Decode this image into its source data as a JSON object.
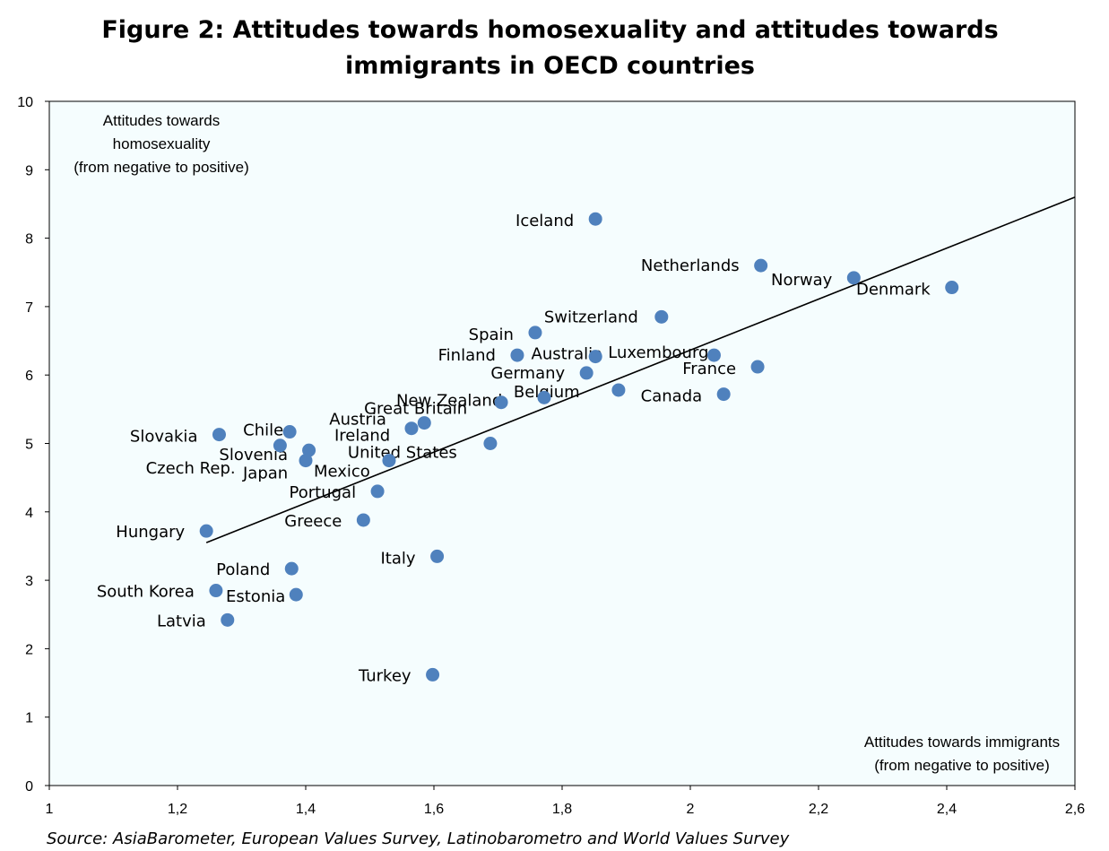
{
  "title_lines": [
    "Figure 2: Attitudes towards homosexuality and attitudes towards",
    "immigrants in OECD countries"
  ],
  "source": "Source: AsiaBarometer, European Values Survey, Latinobarometro  and World Values Survey",
  "colors": {
    "point": "#4f81bd",
    "plot_bg": "#f5fdfe",
    "trend": "#000000"
  },
  "chart_data": {
    "type": "scatter",
    "title": "Figure 2: Attitudes towards homosexuality and attitudes towards immigrants in OECD countries",
    "xlabel_lines": [
      "Attitudes towards immigrants",
      "(from negative to positive)"
    ],
    "ylabel_lines": [
      "Attitudes towards",
      "homosexuality",
      "(from negative to positive)"
    ],
    "xlim": [
      1,
      2.6
    ],
    "ylim": [
      0,
      10
    ],
    "x_ticks": [
      "1",
      "1,2",
      "1,4",
      "1,6",
      "1,8",
      "2",
      "2,2",
      "2,4",
      "2,6"
    ],
    "y_ticks": [
      "0",
      "1",
      "2",
      "3",
      "4",
      "5",
      "6",
      "7",
      "8",
      "9",
      "10"
    ],
    "grid": false,
    "trendline": {
      "x": [
        1.245,
        2.6
      ],
      "y": [
        3.55,
        8.6
      ]
    },
    "points": [
      {
        "label": "Iceland",
        "x": 1.852,
        "y": 8.28
      },
      {
        "label": "Netherlands",
        "x": 2.11,
        "y": 7.6
      },
      {
        "label": "Norway",
        "x": 2.255,
        "y": 7.42
      },
      {
        "label": "Denmark",
        "x": 2.408,
        "y": 7.28
      },
      {
        "label": "Switzerland",
        "x": 1.955,
        "y": 6.85
      },
      {
        "label": "Spain",
        "x": 1.758,
        "y": 6.62
      },
      {
        "label": "Finland",
        "x": 1.73,
        "y": 6.29
      },
      {
        "label": "Australia",
        "x": 1.852,
        "y": 6.27
      },
      {
        "label": "Luxembourg",
        "x": 2.037,
        "y": 6.29
      },
      {
        "label": "France",
        "x": 2.105,
        "y": 6.12
      },
      {
        "label": "Germany",
        "x": 1.838,
        "y": 6.03
      },
      {
        "label": "Belgium",
        "x": 1.888,
        "y": 5.78
      },
      {
        "label": "Canada",
        "x": 2.052,
        "y": 5.72
      },
      {
        "label": "New Zealand",
        "x": 1.772,
        "y": 5.67
      },
      {
        "label": "Great Britain",
        "x": 1.705,
        "y": 5.6
      },
      {
        "label": "Austria",
        "x": 1.585,
        "y": 5.3
      },
      {
        "label": "Ireland",
        "x": 1.565,
        "y": 5.22
      },
      {
        "label": "United States",
        "x": 1.688,
        "y": 5.0
      },
      {
        "label": "Slovakia",
        "x": 1.265,
        "y": 5.13
      },
      {
        "label": "Chile",
        "x": 1.375,
        "y": 5.17
      },
      {
        "label": "Slovenia",
        "x": 1.36,
        "y": 4.97
      },
      {
        "label": "Czech Rep.",
        "x": 1.405,
        "y": 4.9
      },
      {
        "label": "Japan",
        "x": 1.4,
        "y": 4.75
      },
      {
        "label": "Mexico",
        "x": 1.53,
        "y": 4.75
      },
      {
        "label": "Portugal",
        "x": 1.512,
        "y": 4.3
      },
      {
        "label": "Greece",
        "x": 1.49,
        "y": 3.88
      },
      {
        "label": "Hungary",
        "x": 1.245,
        "y": 3.72
      },
      {
        "label": "Italy",
        "x": 1.605,
        "y": 3.35
      },
      {
        "label": "Poland",
        "x": 1.378,
        "y": 3.17
      },
      {
        "label": "South Korea",
        "x": 1.26,
        "y": 2.85
      },
      {
        "label": "Estonia",
        "x": 1.385,
        "y": 2.79
      },
      {
        "label": "Latvia",
        "x": 1.278,
        "y": 2.42
      },
      {
        "label": "Turkey",
        "x": 1.598,
        "y": 1.62
      }
    ]
  }
}
